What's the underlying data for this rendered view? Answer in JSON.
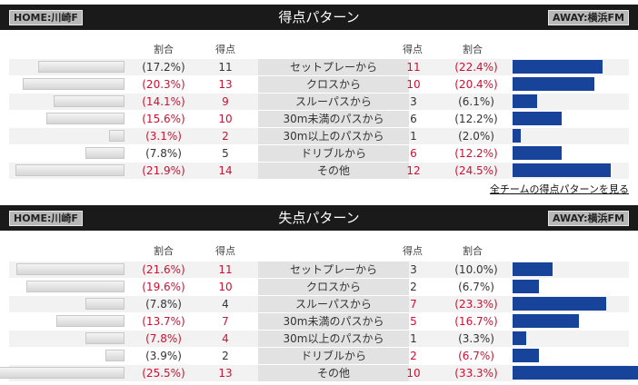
{
  "scored": {
    "home_badge": "HOME:川崎F",
    "away_badge": "AWAY:横浜FM",
    "title": "得点パターン",
    "col_ratio": "割合",
    "col_points": "得点",
    "rows": [
      {
        "category": "セットプレーから",
        "home_pct": "(17.2%)",
        "home_pct_value": 17.2,
        "home_count": "11",
        "home_red": false,
        "away_count": "11",
        "away_pct": "(22.4%)",
        "away_pct_value": 22.4,
        "away_red": true
      },
      {
        "category": "クロスから",
        "home_pct": "(20.3%)",
        "home_pct_value": 20.3,
        "home_count": "13",
        "home_red": true,
        "away_count": "10",
        "away_pct": "(20.4%)",
        "away_pct_value": 20.4,
        "away_red": true
      },
      {
        "category": "スルーパスから",
        "home_pct": "(14.1%)",
        "home_pct_value": 14.1,
        "home_count": "9",
        "home_red": true,
        "away_count": "3",
        "away_pct": "(6.1%)",
        "away_pct_value": 6.1,
        "away_red": false
      },
      {
        "category": "30m未満のパスから",
        "home_pct": "(15.6%)",
        "home_pct_value": 15.6,
        "home_count": "10",
        "home_red": true,
        "away_count": "6",
        "away_pct": "(12.2%)",
        "away_pct_value": 12.2,
        "away_red": false
      },
      {
        "category": "30m以上のパスから",
        "home_pct": "(3.1%)",
        "home_pct_value": 3.1,
        "home_count": "2",
        "home_red": true,
        "away_count": "1",
        "away_pct": "(2.0%)",
        "away_pct_value": 2.0,
        "away_red": false
      },
      {
        "category": "ドリブルから",
        "home_pct": "(7.8%)",
        "home_pct_value": 7.8,
        "home_count": "5",
        "home_red": false,
        "away_count": "6",
        "away_pct": "(12.2%)",
        "away_pct_value": 12.2,
        "away_red": true
      },
      {
        "category": "その他",
        "home_pct": "(21.9%)",
        "home_pct_value": 21.9,
        "home_count": "14",
        "home_red": true,
        "away_count": "12",
        "away_pct": "(24.5%)",
        "away_pct_value": 24.5,
        "away_red": true
      }
    ],
    "link": "全チームの得点パターンを見る"
  },
  "conceded": {
    "home_badge": "HOME:川崎F",
    "away_badge": "AWAY:横浜FM",
    "title": "失点パターン",
    "col_ratio": "割合",
    "col_points": "得点",
    "rows": [
      {
        "category": "セットプレーから",
        "home_pct": "(21.6%)",
        "home_pct_value": 21.6,
        "home_count": "11",
        "home_red": true,
        "away_count": "3",
        "away_pct": "(10.0%)",
        "away_pct_value": 10.0,
        "away_red": false
      },
      {
        "category": "クロスから",
        "home_pct": "(19.6%)",
        "home_pct_value": 19.6,
        "home_count": "10",
        "home_red": true,
        "away_count": "2",
        "away_pct": "(6.7%)",
        "away_pct_value": 6.7,
        "away_red": false
      },
      {
        "category": "スルーパスから",
        "home_pct": "(7.8%)",
        "home_pct_value": 7.8,
        "home_count": "4",
        "home_red": false,
        "away_count": "7",
        "away_pct": "(23.3%)",
        "away_pct_value": 23.3,
        "away_red": true
      },
      {
        "category": "30m未満のパスから",
        "home_pct": "(13.7%)",
        "home_pct_value": 13.7,
        "home_count": "7",
        "home_red": true,
        "away_count": "5",
        "away_pct": "(16.7%)",
        "away_pct_value": 16.7,
        "away_red": true
      },
      {
        "category": "30m以上のパスから",
        "home_pct": "(7.8%)",
        "home_pct_value": 7.8,
        "home_count": "4",
        "home_red": true,
        "away_count": "1",
        "away_pct": "(3.3%)",
        "away_pct_value": 3.3,
        "away_red": false
      },
      {
        "category": "ドリブルから",
        "home_pct": "(3.9%)",
        "home_pct_value": 3.9,
        "home_count": "2",
        "home_red": false,
        "away_count": "2",
        "away_pct": "(6.7%)",
        "away_pct_value": 6.7,
        "away_red": true
      },
      {
        "category": "その他",
        "home_pct": "(25.5%)",
        "home_pct_value": 25.5,
        "home_count": "13",
        "home_red": true,
        "away_count": "10",
        "away_pct": "(33.3%)",
        "away_pct_value": 33.3,
        "away_red": true
      }
    ]
  },
  "colors": {
    "red": "#cc1133",
    "away_bar": "#17449a",
    "header_bg": "#1a1a1a"
  }
}
